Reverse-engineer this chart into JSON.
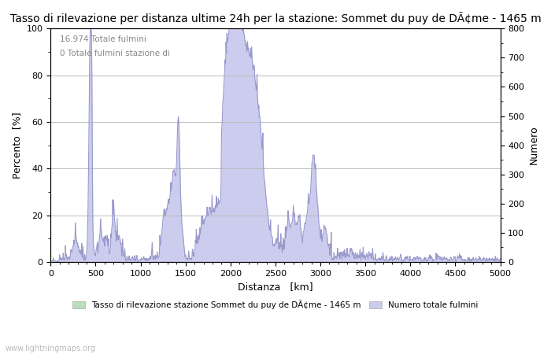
{
  "title": "Tasso di rilevazione per distanza ultime 24h per la stazione: Sommet du puy de DÃ¢me - 1465 m",
  "annotation_line1": "16.974 Totale fulmini",
  "annotation_line2": "0 Totale fulmini stazione di",
  "xlabel": "Distanza   [km]",
  "ylabel_left": "Percento  [%]",
  "ylabel_right": "Numero",
  "xlim": [
    0,
    5000
  ],
  "ylim_left": [
    0,
    100
  ],
  "ylim_right": [
    0,
    800
  ],
  "yticks_left": [
    0,
    20,
    40,
    60,
    80,
    100
  ],
  "yticks_right": [
    0,
    100,
    200,
    300,
    400,
    500,
    600,
    700,
    800
  ],
  "xticks": [
    0,
    500,
    1000,
    1500,
    2000,
    2500,
    3000,
    3500,
    4000,
    4500,
    5000
  ],
  "legend_label1": "Tasso di rilevazione stazione Sommet du puy de DÃ¢me - 1465 m",
  "legend_label2": "Numero totale fulmini",
  "watermark": "www.lightningmaps.org",
  "line_color": "#9999cc",
  "fill_color": "#ccccee",
  "legend_color1": "#bbddbb",
  "legend_color2": "#ccccee",
  "background_color": "#ffffff",
  "grid_color": "#bbbbbb",
  "annotation_color": "#888888",
  "title_fontsize": 10,
  "axis_fontsize": 9,
  "tick_fontsize": 8
}
